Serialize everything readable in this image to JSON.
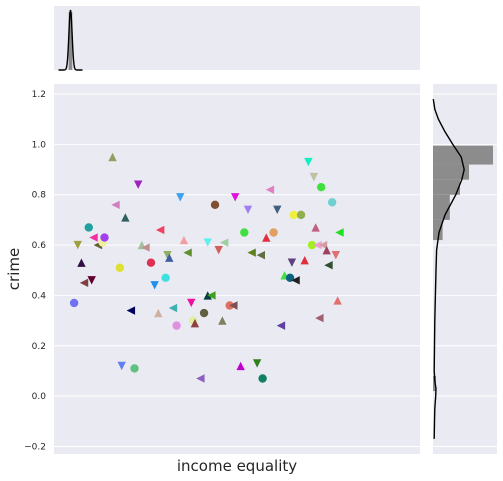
{
  "chart_data": {
    "type": "scatter",
    "subtype": "joint plot with marginal histograms and density curves",
    "xlabel": "income equality",
    "ylabel": "crime",
    "ylim": [
      -0.23,
      1.24
    ],
    "yticks": [
      -0.2,
      0.0,
      0.2,
      0.4,
      0.6,
      0.8,
      1.0,
      1.2
    ],
    "ytick_labels": [
      "−0.2",
      "0.0",
      "0.2",
      "0.4",
      "0.6",
      "0.8",
      "1.0",
      "1.2"
    ],
    "xlim": [
      0,
      100
    ],
    "x_ticks_shown": false,
    "grid": true,
    "background_color": "#eaeaf2",
    "marker_note": "each point drawn with its own color and marker shape",
    "points": [
      {
        "x": 5.5,
        "y": 0.37,
        "marker": "o",
        "color": "#7070f0"
      },
      {
        "x": 6.5,
        "y": 0.6,
        "marker": "v",
        "color": "#a0a040"
      },
      {
        "x": 7.5,
        "y": 0.53,
        "marker": "^",
        "color": "#301040"
      },
      {
        "x": 8.2,
        "y": 0.45,
        "marker": "<",
        "color": "#804040"
      },
      {
        "x": 9.5,
        "y": 0.67,
        "marker": "o",
        "color": "#20a0a0"
      },
      {
        "x": 10.3,
        "y": 0.46,
        "marker": "v",
        "color": "#600030"
      },
      {
        "x": 10.8,
        "y": 0.63,
        "marker": "<",
        "color": "#f030a0"
      },
      {
        "x": 12.0,
        "y": 0.6,
        "marker": "<",
        "color": "#606030"
      },
      {
        "x": 13.3,
        "y": 0.61,
        "marker": "o",
        "color": "#f0f0a0"
      },
      {
        "x": 13.8,
        "y": 0.63,
        "marker": "o",
        "color": "#a040f0"
      },
      {
        "x": 16.0,
        "y": 0.95,
        "marker": "^",
        "color": "#90a060"
      },
      {
        "x": 16.8,
        "y": 0.76,
        "marker": "<",
        "color": "#d080c0"
      },
      {
        "x": 18.0,
        "y": 0.51,
        "marker": "o",
        "color": "#e0e030"
      },
      {
        "x": 18.5,
        "y": 0.12,
        "marker": "v",
        "color": "#6080f0"
      },
      {
        "x": 19.5,
        "y": 0.71,
        "marker": "^",
        "color": "#306060"
      },
      {
        "x": 21.0,
        "y": 0.34,
        "marker": "<",
        "color": "#000060"
      },
      {
        "x": 22.0,
        "y": 0.11,
        "marker": "o",
        "color": "#60c080"
      },
      {
        "x": 23.0,
        "y": 0.84,
        "marker": "v",
        "color": "#a020c0"
      },
      {
        "x": 24.0,
        "y": 0.6,
        "marker": "^",
        "color": "#a0c0a0"
      },
      {
        "x": 25.0,
        "y": 0.59,
        "marker": "<",
        "color": "#c09090"
      },
      {
        "x": 26.5,
        "y": 0.53,
        "marker": "o",
        "color": "#e03050"
      },
      {
        "x": 27.5,
        "y": 0.44,
        "marker": "v",
        "color": "#2090f0"
      },
      {
        "x": 28.5,
        "y": 0.33,
        "marker": "^",
        "color": "#d0b0a0"
      },
      {
        "x": 29.0,
        "y": 0.66,
        "marker": "<",
        "color": "#f04060"
      },
      {
        "x": 30.5,
        "y": 0.47,
        "marker": "o",
        "color": "#40e0e0"
      },
      {
        "x": 31.0,
        "y": 0.56,
        "marker": "v",
        "color": "#90b060"
      },
      {
        "x": 31.5,
        "y": 0.55,
        "marker": "^",
        "color": "#4060a0"
      },
      {
        "x": 32.5,
        "y": 0.35,
        "marker": "<",
        "color": "#40b0b0"
      },
      {
        "x": 33.5,
        "y": 0.28,
        "marker": "o",
        "color": "#e090e0"
      },
      {
        "x": 34.5,
        "y": 0.79,
        "marker": "v",
        "color": "#40a0f0"
      },
      {
        "x": 35.5,
        "y": 0.62,
        "marker": "^",
        "color": "#f0a0a0"
      },
      {
        "x": 36.5,
        "y": 0.57,
        "marker": "<",
        "color": "#609030"
      },
      {
        "x": 37.5,
        "y": 0.37,
        "marker": "v",
        "color": "#f010a0"
      },
      {
        "x": 38.0,
        "y": 0.3,
        "marker": "o",
        "color": "#e0f0a0"
      },
      {
        "x": 38.5,
        "y": 0.29,
        "marker": "^",
        "color": "#904040"
      },
      {
        "x": 40.0,
        "y": 0.07,
        "marker": "<",
        "color": "#9060c0"
      },
      {
        "x": 41.0,
        "y": 0.33,
        "marker": "o",
        "color": "#606040"
      },
      {
        "x": 42.0,
        "y": 0.61,
        "marker": "v",
        "color": "#60f0f0"
      },
      {
        "x": 42.0,
        "y": 0.4,
        "marker": "^",
        "color": "#004040"
      },
      {
        "x": 43.0,
        "y": 0.4,
        "marker": "<",
        "color": "#40a020"
      },
      {
        "x": 44.0,
        "y": 0.76,
        "marker": "o",
        "color": "#805030"
      },
      {
        "x": 45.0,
        "y": 0.58,
        "marker": "v",
        "color": "#d06060"
      },
      {
        "x": 46.0,
        "y": 0.3,
        "marker": "^",
        "color": "#808060"
      },
      {
        "x": 46.5,
        "y": 0.61,
        "marker": "<",
        "color": "#a0d0a0"
      },
      {
        "x": 48.0,
        "y": 0.36,
        "marker": "o",
        "color": "#e07060"
      },
      {
        "x": 49.0,
        "y": 0.36,
        "marker": "<",
        "color": "#805050"
      },
      {
        "x": 49.5,
        "y": 0.79,
        "marker": "v",
        "color": "#e010e0"
      },
      {
        "x": 51.0,
        "y": 0.12,
        "marker": "^",
        "color": "#c000d0"
      },
      {
        "x": 52.0,
        "y": 0.65,
        "marker": "o",
        "color": "#40e040"
      },
      {
        "x": 53.0,
        "y": 0.74,
        "marker": "v",
        "color": "#a080f0"
      },
      {
        "x": 54.0,
        "y": 0.57,
        "marker": "<",
        "color": "#608020"
      },
      {
        "x": 55.5,
        "y": 0.13,
        "marker": "v",
        "color": "#308020"
      },
      {
        "x": 56.5,
        "y": 0.56,
        "marker": "<",
        "color": "#607040"
      },
      {
        "x": 57.0,
        "y": 0.07,
        "marker": "o",
        "color": "#108060"
      },
      {
        "x": 58.0,
        "y": 0.63,
        "marker": "^",
        "color": "#e03040"
      },
      {
        "x": 59.0,
        "y": 0.82,
        "marker": "<",
        "color": "#e080c0"
      },
      {
        "x": 60.0,
        "y": 0.65,
        "marker": "o",
        "color": "#e0a060"
      },
      {
        "x": 61.0,
        "y": 0.74,
        "marker": "v",
        "color": "#406080"
      },
      {
        "x": 62.0,
        "y": 0.28,
        "marker": "<",
        "color": "#6040a0"
      },
      {
        "x": 63.0,
        "y": 0.48,
        "marker": "^",
        "color": "#40e040"
      },
      {
        "x": 64.5,
        "y": 0.47,
        "marker": "o",
        "color": "#106080"
      },
      {
        "x": 65.0,
        "y": 0.53,
        "marker": "v",
        "color": "#604080"
      },
      {
        "x": 65.5,
        "y": 0.72,
        "marker": "o",
        "color": "#f0f040"
      },
      {
        "x": 66.0,
        "y": 0.46,
        "marker": "<",
        "color": "#202020"
      },
      {
        "x": 67.5,
        "y": 0.72,
        "marker": "o",
        "color": "#90b050"
      },
      {
        "x": 68.5,
        "y": 0.54,
        "marker": "^",
        "color": "#e03040"
      },
      {
        "x": 69.5,
        "y": 0.93,
        "marker": "v",
        "color": "#10f0c0"
      },
      {
        "x": 70.5,
        "y": 0.6,
        "marker": "o",
        "color": "#a0f020"
      },
      {
        "x": 71.0,
        "y": 0.87,
        "marker": "v",
        "color": "#c0c0a0"
      },
      {
        "x": 71.5,
        "y": 0.67,
        "marker": "^",
        "color": "#c06080"
      },
      {
        "x": 72.0,
        "y": 0.6,
        "marker": "<",
        "color": "#f0a0d0"
      },
      {
        "x": 72.5,
        "y": 0.31,
        "marker": "<",
        "color": "#a06070"
      },
      {
        "x": 73.0,
        "y": 0.83,
        "marker": "o",
        "color": "#40e040"
      },
      {
        "x": 73.5,
        "y": 0.6,
        "marker": "<",
        "color": "#d0a0a0"
      },
      {
        "x": 74.5,
        "y": 0.58,
        "marker": "^",
        "color": "#a04060"
      },
      {
        "x": 75.0,
        "y": 0.52,
        "marker": "<",
        "color": "#305030"
      },
      {
        "x": 76.0,
        "y": 0.77,
        "marker": "o",
        "color": "#70d0d0"
      },
      {
        "x": 77.0,
        "y": 0.56,
        "marker": "v",
        "color": "#e07070"
      },
      {
        "x": 77.5,
        "y": 0.38,
        "marker": "^",
        "color": "#e07070"
      },
      {
        "x": 78.0,
        "y": 0.65,
        "marker": "<",
        "color": "#20e020"
      }
    ],
    "marginal_x": {
      "histogram_bins": [
        {
          "x0": 4,
          "x1": 5,
          "height": 1.0
        }
      ],
      "density_peak_x": 4.5
    },
    "marginal_y": {
      "histogram_bins": [
        {
          "y0": 0.92,
          "y1": 0.995,
          "width": 1.0
        },
        {
          "y0": 0.86,
          "y1": 0.92,
          "width": 0.6
        },
        {
          "y0": 0.8,
          "y1": 0.86,
          "width": 0.45
        },
        {
          "y0": 0.7,
          "y1": 0.8,
          "width": 0.28
        },
        {
          "y0": 0.62,
          "y1": 0.7,
          "width": 0.16
        },
        {
          "y0": 0.02,
          "y1": 0.08,
          "width": 0.05
        }
      ],
      "density": [
        [
          -0.17,
          0.02
        ],
        [
          -0.1,
          0.025
        ],
        [
          -0.05,
          0.03
        ],
        [
          0.0,
          0.045
        ],
        [
          0.03,
          0.05
        ],
        [
          0.06,
          0.03
        ],
        [
          0.1,
          0.02
        ],
        [
          0.2,
          0.025
        ],
        [
          0.3,
          0.03
        ],
        [
          0.4,
          0.04
        ],
        [
          0.5,
          0.05
        ],
        [
          0.58,
          0.06
        ],
        [
          0.65,
          0.1
        ],
        [
          0.72,
          0.2
        ],
        [
          0.8,
          0.38
        ],
        [
          0.86,
          0.48
        ],
        [
          0.9,
          0.52
        ],
        [
          0.95,
          0.47
        ],
        [
          1.0,
          0.33
        ],
        [
          1.05,
          0.2
        ],
        [
          1.1,
          0.09
        ],
        [
          1.14,
          0.03
        ],
        [
          1.18,
          0.005
        ]
      ]
    }
  }
}
